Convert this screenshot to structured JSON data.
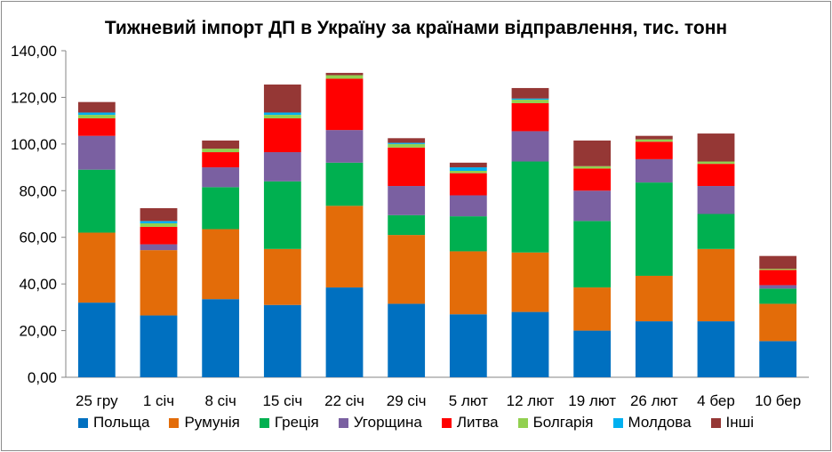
{
  "chart_data": {
    "type": "bar",
    "stacked": true,
    "title": "Тижневий імпорт ДП в Україну за країнами відправлення, тис. тонн",
    "xlabel": "",
    "ylabel": "",
    "ylim": [
      0,
      140
    ],
    "yticks": [
      "0,00",
      "20,00",
      "40,00",
      "60,00",
      "80,00",
      "100,00",
      "120,00",
      "140,00"
    ],
    "grid": false,
    "legend_position": "bottom",
    "categories": [
      "25 гру",
      "1 січ",
      "8 січ",
      "15 січ",
      "22 січ",
      "29 січ",
      "5 лют",
      "12 лют",
      "19 лют",
      "26 лют",
      "4 бер",
      "10 бер"
    ],
    "series": [
      {
        "name": "Польща",
        "color": "#0070c0",
        "values": [
          32,
          26.5,
          33.5,
          31,
          38.5,
          31.5,
          27,
          28,
          20,
          24,
          24,
          15.5
        ]
      },
      {
        "name": "Румунія",
        "color": "#e36c09",
        "values": [
          30,
          28,
          30,
          24,
          35,
          29.5,
          27,
          25.5,
          18.5,
          19.5,
          31,
          16
        ]
      },
      {
        "name": "Греція",
        "color": "#00b050",
        "values": [
          27,
          0,
          18,
          29,
          18.5,
          8.5,
          15,
          39,
          28.5,
          40,
          15,
          6.5
        ]
      },
      {
        "name": "Угорщина",
        "color": "#7a60a1",
        "values": [
          14.5,
          2.5,
          8.5,
          12.5,
          14,
          12.5,
          9,
          13,
          13,
          10,
          12,
          1.5
        ]
      },
      {
        "name": "Литва",
        "color": "#ff0000",
        "values": [
          7.5,
          7.5,
          6.5,
          14.5,
          22,
          16.5,
          9.5,
          12,
          9.5,
          7.5,
          9.5,
          6.5
        ]
      },
      {
        "name": "Болгарія",
        "color": "#92d050",
        "values": [
          1.5,
          1.5,
          1.5,
          1.5,
          1.5,
          1.5,
          1,
          1.5,
          1,
          1,
          1,
          0.5
        ]
      },
      {
        "name": "Молдова",
        "color": "#00b0f0",
        "values": [
          1,
          1,
          0,
          1,
          0,
          0.5,
          1.5,
          0.5,
          0,
          0,
          0,
          0
        ]
      },
      {
        "name": "Інші",
        "color": "#953735",
        "values": [
          4.5,
          5.5,
          3.5,
          12,
          1,
          2,
          2,
          4.5,
          11,
          1.5,
          12,
          5.5
        ]
      }
    ]
  }
}
